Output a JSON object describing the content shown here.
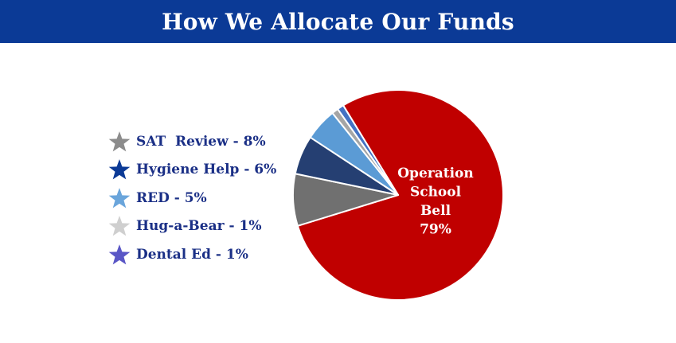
{
  "title": "How We Allocate Our Funds",
  "chart_data": {
    "type": "pie",
    "title": "How We Allocate Our Funds",
    "slices": [
      {
        "name": "Operation School Bell",
        "value": 79,
        "color": "#c00000",
        "label_lines": [
          "Operation",
          "School",
          "Bell",
          "79%"
        ]
      },
      {
        "name": "SAT Review",
        "value": 8,
        "color": "#707070"
      },
      {
        "name": "Hygiene Help",
        "value": 6,
        "color": "#253f72"
      },
      {
        "name": "RED",
        "value": 5,
        "color": "#5b9bd5"
      },
      {
        "name": "Hug-a-Bear",
        "value": 1,
        "color": "#a5a5a5"
      },
      {
        "name": "Dental Ed",
        "value": 1,
        "color": "#4472c4"
      }
    ],
    "legend": {
      "placement": "left",
      "items": [
        {
          "label": "SAT  Review - 8%",
          "star_color": "#8c8c8c",
          "icon": "star-icon"
        },
        {
          "label": "Hygiene Help - 6%",
          "star_color": "#0b3a96",
          "icon": "star-icon"
        },
        {
          "label": "RED - 5%",
          "star_color": "#6aa5db",
          "icon": "star-icon"
        },
        {
          "label": "Hug-a-Bear - 1%",
          "star_color": "#cfcfcf",
          "icon": "star-icon"
        },
        {
          "label": "Dental Ed - 1%",
          "star_color": "#5a57c6",
          "icon": "star-icon"
        }
      ]
    }
  }
}
